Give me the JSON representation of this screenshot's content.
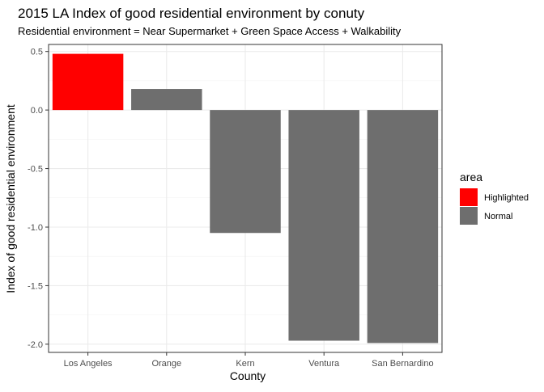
{
  "chart_data": {
    "type": "bar",
    "title": "2015 LA Index of good residential environment by conuty",
    "subtitle": "Residential environment = Near Supermarket + Green Space Access + Walkability",
    "xlabel": "County",
    "ylabel": "Index of good residential environment",
    "categories": [
      "Los Angeles",
      "Orange",
      "Kern",
      "Ventura",
      "San Bernardino"
    ],
    "values": [
      0.48,
      0.18,
      -1.05,
      -1.97,
      -1.99
    ],
    "area": [
      "Highlighted",
      "Normal",
      "Normal",
      "Normal",
      "Normal"
    ],
    "ylim": [
      -2.07,
      0.56
    ],
    "yticks": [
      0.5,
      0.0,
      -0.5,
      -1.0,
      -1.5,
      -2.0
    ],
    "ytick_labels": [
      "0.5",
      "0.0",
      "-0.5",
      "-1.0",
      "-1.5",
      "-2.0"
    ],
    "grid": true,
    "legend": {
      "title": "area",
      "placement": "right",
      "entries": [
        {
          "label": "Highlighted",
          "color": "#FF0000"
        },
        {
          "label": "Normal",
          "color": "#6E6E6E"
        }
      ]
    },
    "colors": {
      "Highlighted": "#FF0000",
      "Normal": "#6E6E6E"
    }
  }
}
